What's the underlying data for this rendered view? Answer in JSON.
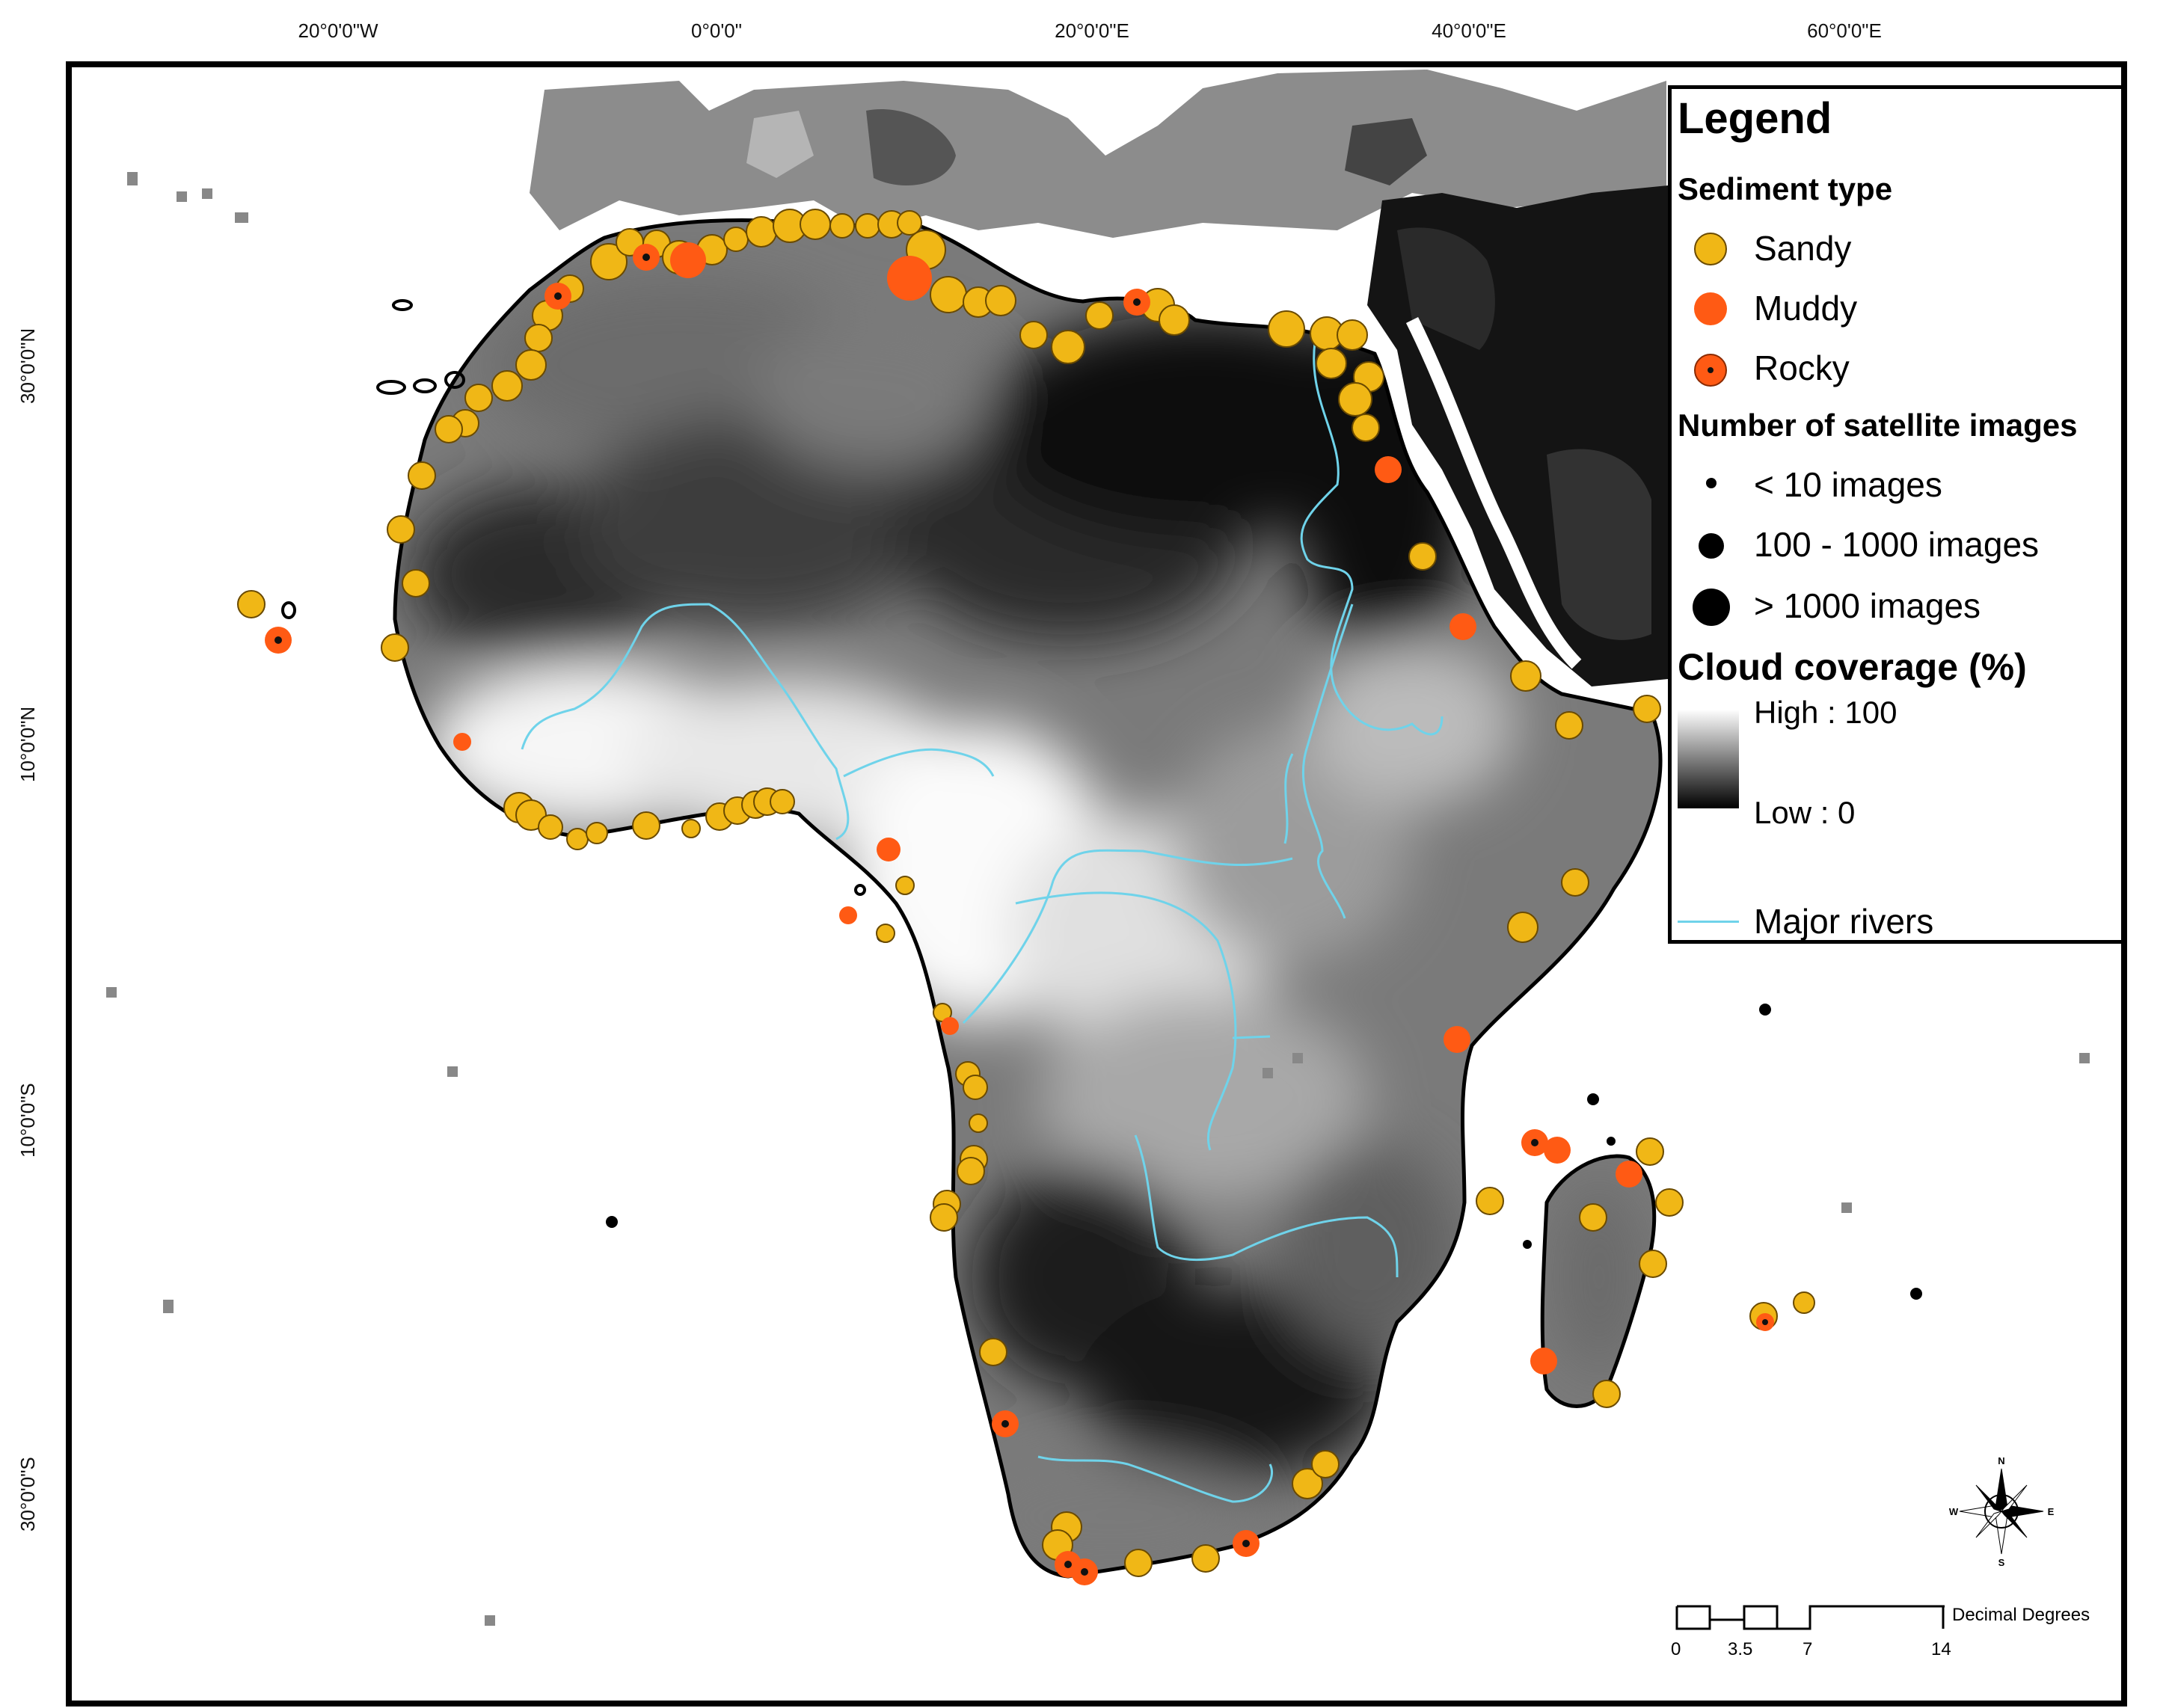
{
  "graticule": {
    "top": [
      "20°0'0\"W",
      "0°0'0\"",
      "20°0'0\"E",
      "40°0'0\"E",
      "60°0'0\"E"
    ],
    "left": [
      "30°0'0\"N",
      "10°0'0\"N",
      "10°0'0\"S",
      "30°0'0\"S"
    ]
  },
  "legend": {
    "title": "Legend",
    "sediment_heading": "Sediment type",
    "sediment_types": [
      {
        "label": "Sandy",
        "color": "#f0b716"
      },
      {
        "label": "Muddy",
        "color": "#ff5a14"
      },
      {
        "label": "Rocky",
        "color": "#ff5a14",
        "center": "#111111"
      }
    ],
    "images_heading": "Number of satellite images",
    "image_classes": [
      "< 10 images",
      "100 - 1000 images",
      "> 1000 images"
    ],
    "cloud_heading": "Cloud coverage (%)",
    "cloud_high": "High : 100",
    "cloud_low": "Low : 0",
    "rivers_label": "Major rivers",
    "river_color": "#6fd3ea"
  },
  "compass": {
    "n": "N",
    "s": "S",
    "e": "E",
    "w": "W"
  },
  "scalebar": {
    "ticks": [
      "0",
      "3.5",
      "7",
      "14"
    ],
    "unit": "Decimal Degrees"
  }
}
